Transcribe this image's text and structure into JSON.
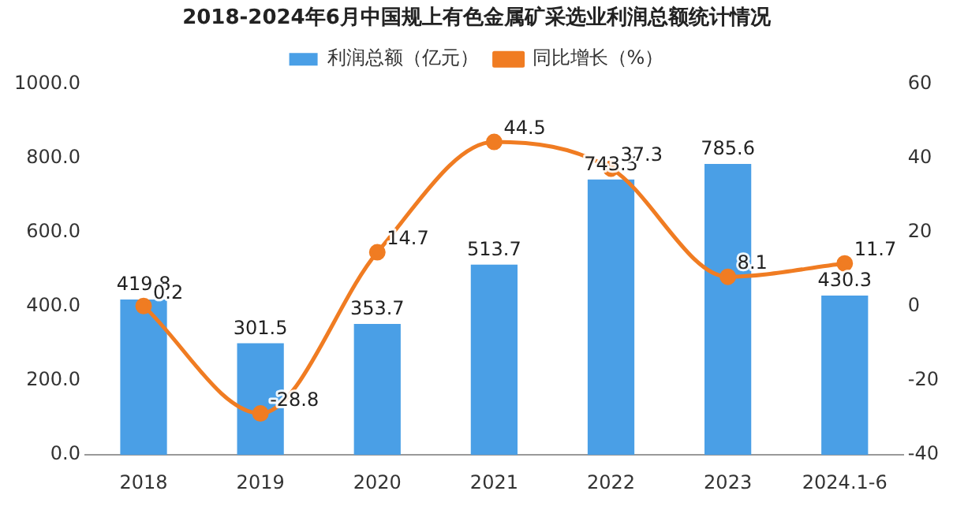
{
  "chart_data": {
    "type": "bar",
    "title": "2018-2024年6月中国规上有色金属矿采选业利润总额统计情况",
    "categories": [
      "2018",
      "2019",
      "2020",
      "2021",
      "2022",
      "2023",
      "2024.1-6"
    ],
    "series": [
      {
        "name": "利润总额（亿元）",
        "color": "#4a9fe6",
        "values": [
          419.8,
          301.5,
          353.7,
          513.7,
          743.5,
          785.6,
          430.3
        ]
      },
      {
        "name": "同比增长（%）",
        "type": "line",
        "axis": "y2",
        "color": "#f07c22",
        "values": [
          0.2,
          -28.8,
          14.7,
          44.5,
          37.3,
          8.1,
          11.7
        ]
      }
    ],
    "ylim": [
      0,
      1000
    ],
    "yticks": [
      {
        "value": 0,
        "label": "0.0"
      },
      {
        "value": 200,
        "label": "200.0"
      },
      {
        "value": 400,
        "label": "400.0"
      },
      {
        "value": 600,
        "label": "600.0"
      },
      {
        "value": 800,
        "label": "800.0"
      },
      {
        "value": 1000,
        "label": "1000.0"
      }
    ],
    "y2lim": [
      -40,
      60
    ],
    "y2ticks": [
      -40,
      -20,
      0,
      20,
      40,
      60
    ],
    "legend": "top",
    "marker": "circle",
    "data_labels": true,
    "grid": false
  }
}
